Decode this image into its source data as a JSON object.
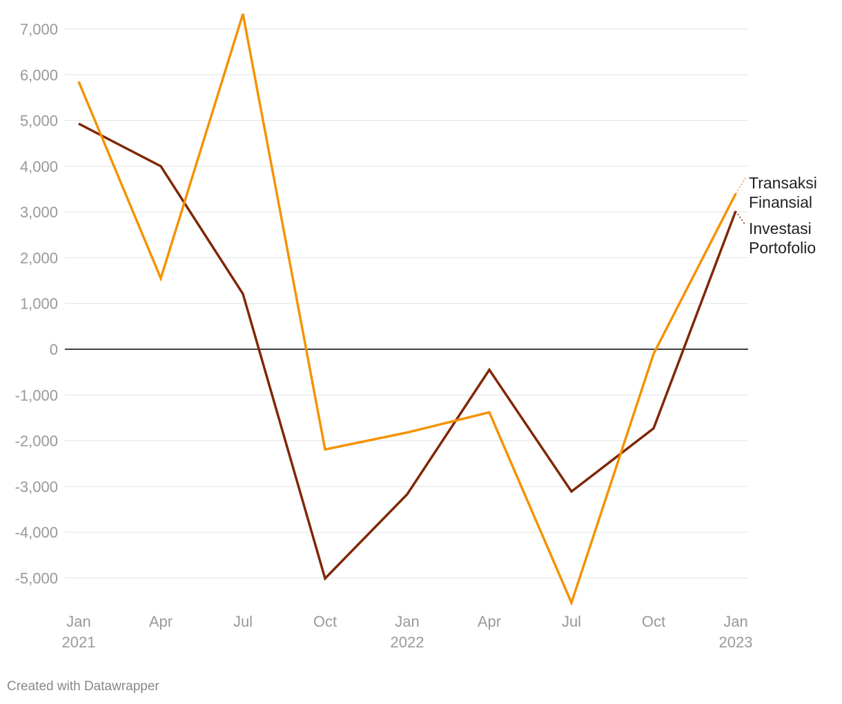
{
  "chart_data": {
    "type": "line",
    "title": "",
    "xlabel": "",
    "ylabel": "",
    "x": [
      "Jan 2021",
      "Apr 2021",
      "Jul 2021",
      "Oct 2021",
      "Jan 2022",
      "Apr 2022",
      "Jul 2022",
      "Oct 2022",
      "Jan 2023"
    ],
    "x_tick_labels": [
      [
        "Jan",
        "2021"
      ],
      [
        "Apr"
      ],
      [
        "Jul"
      ],
      [
        "Oct"
      ],
      [
        "Jan",
        "2022"
      ],
      [
        "Apr"
      ],
      [
        "Jul"
      ],
      [
        "Oct"
      ],
      [
        "Jan",
        "2023"
      ]
    ],
    "ylim": [
      -5600,
      7400
    ],
    "y_ticks": [
      7000,
      6000,
      5000,
      4000,
      3000,
      2000,
      1000,
      0,
      -1000,
      -2000,
      -3000,
      -4000,
      -5000
    ],
    "y_tick_labels": [
      "7,000",
      "6,000",
      "5,000",
      "4,000",
      "3,000",
      "2,000",
      "1,000",
      "0",
      "-1,000",
      "-2,000",
      "-3,000",
      "-4,000",
      "-5,000"
    ],
    "grid": true,
    "legend": "direct labels at line ends (right)",
    "series": [
      {
        "name": "Transaksi Finansial",
        "label_lines": [
          "Transaksi",
          "Finansial"
        ],
        "color": "#f59200",
        "values": [
          5850,
          1550,
          7330,
          -2190,
          -1820,
          -1380,
          -5540,
          -100,
          3400
        ]
      },
      {
        "name": "Investasi Portofolio",
        "label_lines": [
          "Investasi",
          "Portofolio"
        ],
        "color": "#7f2704",
        "values": [
          4930,
          4000,
          1210,
          -5010,
          -3170,
          -450,
          -3110,
          -1730,
          3020
        ]
      }
    ]
  },
  "footer": {
    "credit": "Created with Datawrapper"
  }
}
